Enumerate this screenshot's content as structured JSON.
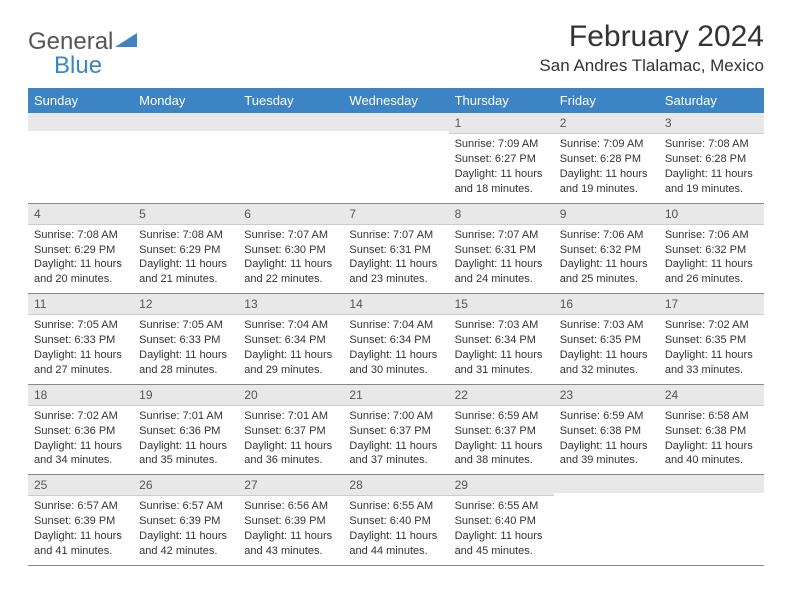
{
  "logo": {
    "general": "General",
    "blue": "Blue"
  },
  "title": "February 2024",
  "location": "San Andres Tlalamac, Mexico",
  "colors": {
    "header_bg": "#3d84c4",
    "header_fg": "#ffffff",
    "daynum_bg": "#e8e8e8",
    "logo_blue": "#3d84c4",
    "text": "#333333"
  },
  "weekdays": [
    "Sunday",
    "Monday",
    "Tuesday",
    "Wednesday",
    "Thursday",
    "Friday",
    "Saturday"
  ],
  "grid": {
    "leading_blanks": 4,
    "trailing_blanks": 2
  },
  "days": [
    {
      "n": "1",
      "sr": "Sunrise: 7:09 AM",
      "ss": "Sunset: 6:27 PM",
      "d1": "Daylight: 11 hours",
      "d2": "and 18 minutes."
    },
    {
      "n": "2",
      "sr": "Sunrise: 7:09 AM",
      "ss": "Sunset: 6:28 PM",
      "d1": "Daylight: 11 hours",
      "d2": "and 19 minutes."
    },
    {
      "n": "3",
      "sr": "Sunrise: 7:08 AM",
      "ss": "Sunset: 6:28 PM",
      "d1": "Daylight: 11 hours",
      "d2": "and 19 minutes."
    },
    {
      "n": "4",
      "sr": "Sunrise: 7:08 AM",
      "ss": "Sunset: 6:29 PM",
      "d1": "Daylight: 11 hours",
      "d2": "and 20 minutes."
    },
    {
      "n": "5",
      "sr": "Sunrise: 7:08 AM",
      "ss": "Sunset: 6:29 PM",
      "d1": "Daylight: 11 hours",
      "d2": "and 21 minutes."
    },
    {
      "n": "6",
      "sr": "Sunrise: 7:07 AM",
      "ss": "Sunset: 6:30 PM",
      "d1": "Daylight: 11 hours",
      "d2": "and 22 minutes."
    },
    {
      "n": "7",
      "sr": "Sunrise: 7:07 AM",
      "ss": "Sunset: 6:31 PM",
      "d1": "Daylight: 11 hours",
      "d2": "and 23 minutes."
    },
    {
      "n": "8",
      "sr": "Sunrise: 7:07 AM",
      "ss": "Sunset: 6:31 PM",
      "d1": "Daylight: 11 hours",
      "d2": "and 24 minutes."
    },
    {
      "n": "9",
      "sr": "Sunrise: 7:06 AM",
      "ss": "Sunset: 6:32 PM",
      "d1": "Daylight: 11 hours",
      "d2": "and 25 minutes."
    },
    {
      "n": "10",
      "sr": "Sunrise: 7:06 AM",
      "ss": "Sunset: 6:32 PM",
      "d1": "Daylight: 11 hours",
      "d2": "and 26 minutes."
    },
    {
      "n": "11",
      "sr": "Sunrise: 7:05 AM",
      "ss": "Sunset: 6:33 PM",
      "d1": "Daylight: 11 hours",
      "d2": "and 27 minutes."
    },
    {
      "n": "12",
      "sr": "Sunrise: 7:05 AM",
      "ss": "Sunset: 6:33 PM",
      "d1": "Daylight: 11 hours",
      "d2": "and 28 minutes."
    },
    {
      "n": "13",
      "sr": "Sunrise: 7:04 AM",
      "ss": "Sunset: 6:34 PM",
      "d1": "Daylight: 11 hours",
      "d2": "and 29 minutes."
    },
    {
      "n": "14",
      "sr": "Sunrise: 7:04 AM",
      "ss": "Sunset: 6:34 PM",
      "d1": "Daylight: 11 hours",
      "d2": "and 30 minutes."
    },
    {
      "n": "15",
      "sr": "Sunrise: 7:03 AM",
      "ss": "Sunset: 6:34 PM",
      "d1": "Daylight: 11 hours",
      "d2": "and 31 minutes."
    },
    {
      "n": "16",
      "sr": "Sunrise: 7:03 AM",
      "ss": "Sunset: 6:35 PM",
      "d1": "Daylight: 11 hours",
      "d2": "and 32 minutes."
    },
    {
      "n": "17",
      "sr": "Sunrise: 7:02 AM",
      "ss": "Sunset: 6:35 PM",
      "d1": "Daylight: 11 hours",
      "d2": "and 33 minutes."
    },
    {
      "n": "18",
      "sr": "Sunrise: 7:02 AM",
      "ss": "Sunset: 6:36 PM",
      "d1": "Daylight: 11 hours",
      "d2": "and 34 minutes."
    },
    {
      "n": "19",
      "sr": "Sunrise: 7:01 AM",
      "ss": "Sunset: 6:36 PM",
      "d1": "Daylight: 11 hours",
      "d2": "and 35 minutes."
    },
    {
      "n": "20",
      "sr": "Sunrise: 7:01 AM",
      "ss": "Sunset: 6:37 PM",
      "d1": "Daylight: 11 hours",
      "d2": "and 36 minutes."
    },
    {
      "n": "21",
      "sr": "Sunrise: 7:00 AM",
      "ss": "Sunset: 6:37 PM",
      "d1": "Daylight: 11 hours",
      "d2": "and 37 minutes."
    },
    {
      "n": "22",
      "sr": "Sunrise: 6:59 AM",
      "ss": "Sunset: 6:37 PM",
      "d1": "Daylight: 11 hours",
      "d2": "and 38 minutes."
    },
    {
      "n": "23",
      "sr": "Sunrise: 6:59 AM",
      "ss": "Sunset: 6:38 PM",
      "d1": "Daylight: 11 hours",
      "d2": "and 39 minutes."
    },
    {
      "n": "24",
      "sr": "Sunrise: 6:58 AM",
      "ss": "Sunset: 6:38 PM",
      "d1": "Daylight: 11 hours",
      "d2": "and 40 minutes."
    },
    {
      "n": "25",
      "sr": "Sunrise: 6:57 AM",
      "ss": "Sunset: 6:39 PM",
      "d1": "Daylight: 11 hours",
      "d2": "and 41 minutes."
    },
    {
      "n": "26",
      "sr": "Sunrise: 6:57 AM",
      "ss": "Sunset: 6:39 PM",
      "d1": "Daylight: 11 hours",
      "d2": "and 42 minutes."
    },
    {
      "n": "27",
      "sr": "Sunrise: 6:56 AM",
      "ss": "Sunset: 6:39 PM",
      "d1": "Daylight: 11 hours",
      "d2": "and 43 minutes."
    },
    {
      "n": "28",
      "sr": "Sunrise: 6:55 AM",
      "ss": "Sunset: 6:40 PM",
      "d1": "Daylight: 11 hours",
      "d2": "and 44 minutes."
    },
    {
      "n": "29",
      "sr": "Sunrise: 6:55 AM",
      "ss": "Sunset: 6:40 PM",
      "d1": "Daylight: 11 hours",
      "d2": "and 45 minutes."
    }
  ]
}
